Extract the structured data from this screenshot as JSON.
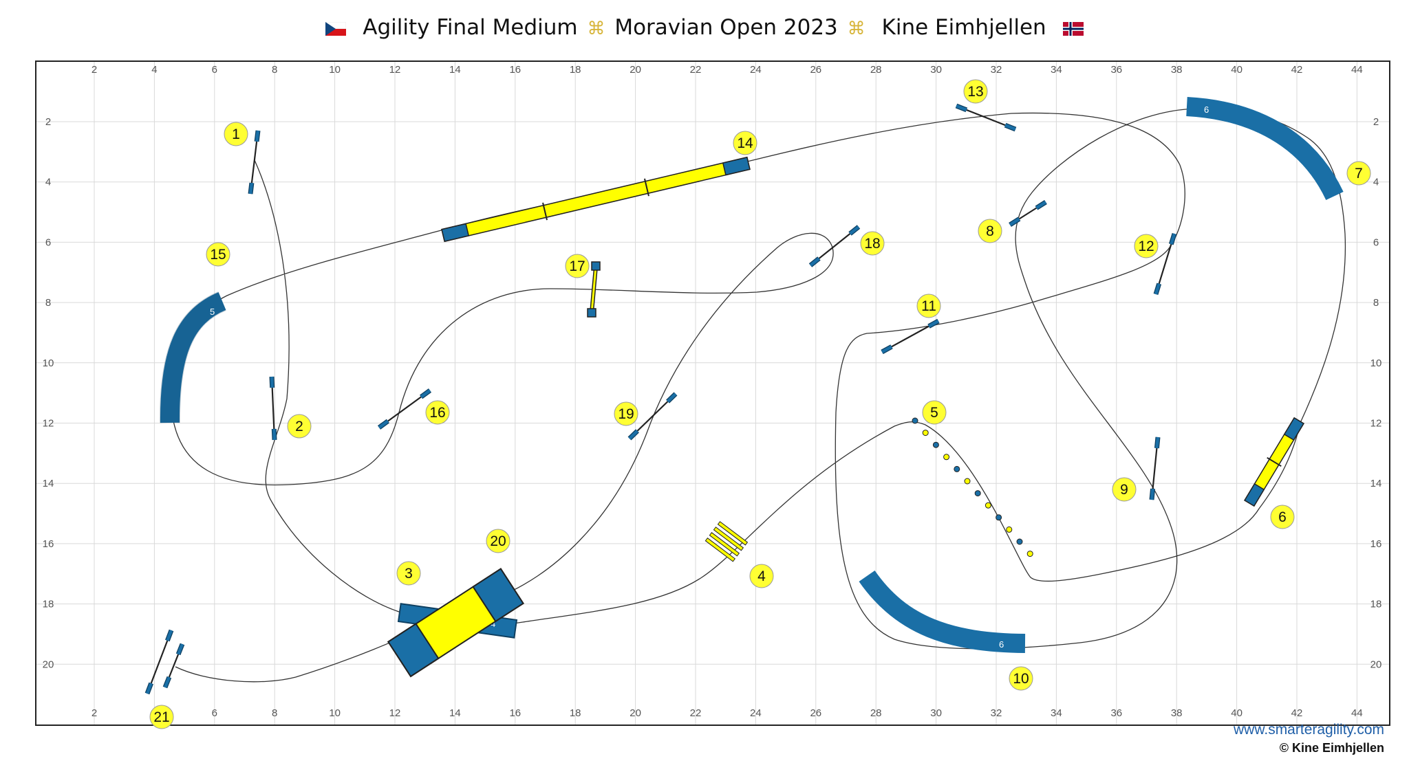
{
  "header": {
    "flag_left": "czech-flag",
    "title_part1": "Agility Final Medium",
    "title_part2": "Moravian Open 2023",
    "title_part3": "Kine Eimhjellen",
    "flag_right": "norway-flag",
    "glass_icon": "champagne-glasses-icon"
  },
  "axes": {
    "x_ticks": [
      "2",
      "4",
      "6",
      "8",
      "10",
      "12",
      "14",
      "16",
      "18",
      "20",
      "22",
      "24",
      "26",
      "28",
      "30",
      "32",
      "34",
      "36",
      "38",
      "40",
      "42",
      "44"
    ],
    "y_ticks": [
      "2",
      "4",
      "6",
      "8",
      "10",
      "12",
      "14",
      "16",
      "18",
      "20"
    ]
  },
  "obstacles": {
    "tunnel_5_label": "5",
    "tunnel_6a_label": "6",
    "tunnel_6b_label": "6",
    "tunnel_4_label": "4"
  },
  "sequence": [
    "1",
    "2",
    "3",
    "4",
    "5",
    "6",
    "7",
    "8",
    "9",
    "10",
    "11",
    "12",
    "13",
    "14",
    "15",
    "16",
    "17",
    "18",
    "19",
    "20",
    "21"
  ],
  "colors": {
    "tunnel": "#1a6fa6",
    "contact": "#ffff00",
    "number_bubble": "#ffff33",
    "grid": "#d9d9d9"
  },
  "footer": {
    "url": "www.smarteragility.com",
    "copyright": "© Kine Eimhjellen"
  }
}
